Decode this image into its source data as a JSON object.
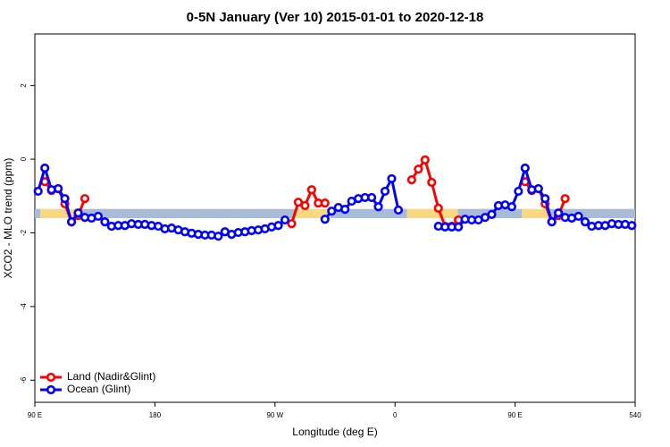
{
  "chart_data": {
    "type": "line",
    "title": "0-5N January (Ver 10)   2015-01-01 to 2020-12-18",
    "x_label": "Longitude (deg E)",
    "y_label": "XCO2 - MLO trend (ppm)",
    "xlim": [
      90,
      540
    ],
    "ylim": [
      -6.6,
      3.4
    ],
    "xticks": [
      {
        "value": 90,
        "label": "90 E"
      },
      180,
      {
        "value": 270,
        "label": "90 W"
      },
      {
        "value": 360,
        "label": "0"
      },
      {
        "value": 450,
        "label": "90 E"
      },
      540
    ],
    "yticks": [
      -6,
      -4,
      -2,
      0,
      2
    ],
    "legend": "bottom-left",
    "band": {
      "ylim": [
        -1.6,
        -1.35
      ],
      "segments": [
        {
          "xlim": [
            90,
            94
          ],
          "color": "#a8bcd8"
        },
        {
          "xlim": [
            94,
            120
          ],
          "color": "#f8d880"
        },
        {
          "xlim": [
            120,
            285
          ],
          "color": "#a8bcd8"
        },
        {
          "xlim": [
            285,
            312
          ],
          "color": "#f8d880"
        },
        {
          "xlim": [
            312,
            369
          ],
          "color": "#a8bcd8"
        },
        {
          "xlim": [
            369,
            407
          ],
          "color": "#f8d880"
        },
        {
          "xlim": [
            407,
            455
          ],
          "color": "#a8bcd8"
        },
        {
          "xlim": [
            455,
            476
          ],
          "color": "#f8d880"
        },
        {
          "xlim": [
            476,
            540
          ],
          "color": "#a8bcd8"
        }
      ]
    },
    "x": [
      92.5,
      97.5,
      102.5,
      107.5,
      112.5,
      117.5,
      122.5,
      127.5,
      132.5,
      137.5,
      142.5,
      147.5,
      152.5,
      157.5,
      162.5,
      167.5,
      172.5,
      177.5,
      182.5,
      187.5,
      192.5,
      197.5,
      202.5,
      207.5,
      212.5,
      217.5,
      222.5,
      227.5,
      232.5,
      237.5,
      242.5,
      247.5,
      252.5,
      257.5,
      262.5,
      267.5,
      272.5,
      277.5,
      282.5,
      287.5,
      292.5,
      297.5,
      302.5,
      307.5,
      312.5,
      317.5,
      322.5,
      327.5,
      332.5,
      337.5,
      342.5,
      347.5,
      352.5,
      357.5,
      362.5,
      367.5,
      372.5,
      377.5,
      382.5,
      387.5,
      392.5,
      397.5,
      402.5,
      407.5,
      412.5,
      417.5,
      422.5,
      427.5,
      432.5,
      437.5,
      442.5,
      447.5,
      452.5,
      457.5,
      462.5,
      467.5,
      472.5,
      477.5,
      482.5,
      487.5,
      492.5,
      497.5,
      502.5,
      507.5,
      512.5,
      517.5,
      522.5,
      527.5,
      532.5,
      537.5
    ],
    "series": [
      {
        "name": "Land (Nadir&Glint)",
        "color": "#ff0000",
        "values": [
          null,
          -0.61,
          -0.85,
          -0.8,
          -1.21,
          -1.7,
          -1.53,
          -1.07,
          null,
          null,
          null,
          null,
          null,
          null,
          null,
          null,
          null,
          null,
          null,
          null,
          null,
          null,
          null,
          null,
          null,
          null,
          null,
          null,
          null,
          null,
          null,
          null,
          null,
          null,
          null,
          null,
          null,
          null,
          -1.75,
          -1.17,
          -1.26,
          -0.83,
          -1.19,
          -1.19,
          null,
          null,
          null,
          null,
          null,
          null,
          null,
          null,
          null,
          null,
          null,
          null,
          -0.56,
          -0.27,
          -0.02,
          -0.63,
          -1.33,
          -1.82,
          -1.82,
          -1.65,
          null,
          null,
          null,
          null,
          null,
          null,
          null,
          null,
          null,
          -0.61,
          -0.85,
          -0.8,
          -1.21,
          -1.7,
          -1.53,
          -1.07,
          null,
          null,
          null,
          null,
          null,
          null,
          null,
          null,
          null,
          null
        ]
      },
      {
        "name": "Ocean (Glint)",
        "color": "#0000ff",
        "values": [
          -0.87,
          -0.24,
          -0.83,
          -0.8,
          -1.07,
          -1.7,
          -1.46,
          -1.58,
          -1.6,
          -1.55,
          -1.7,
          -1.82,
          -1.8,
          -1.8,
          -1.75,
          -1.77,
          -1.77,
          -1.8,
          -1.82,
          -1.89,
          -1.87,
          -1.92,
          -1.97,
          -2.01,
          -2.04,
          -2.06,
          -2.06,
          -2.09,
          -1.97,
          -2.04,
          -1.99,
          -1.97,
          -1.94,
          -1.92,
          -1.89,
          -1.84,
          -1.8,
          -1.65,
          null,
          null,
          null,
          null,
          null,
          -1.63,
          -1.41,
          -1.31,
          -1.36,
          -1.14,
          -1.07,
          -1.04,
          -1.04,
          -1.29,
          -0.87,
          -0.53,
          -1.38,
          null,
          null,
          null,
          null,
          null,
          -1.82,
          -1.84,
          -1.84,
          -1.84,
          -1.63,
          -1.65,
          -1.65,
          -1.58,
          -1.5,
          -1.26,
          -1.24,
          -1.29,
          -0.87,
          -0.24,
          -0.83,
          -0.8,
          -1.07,
          -1.7,
          -1.46,
          -1.58,
          -1.6,
          -1.55,
          -1.7,
          -1.82,
          -1.8,
          -1.8,
          -1.75,
          -1.77,
          -1.77,
          -1.8
        ]
      }
    ]
  }
}
